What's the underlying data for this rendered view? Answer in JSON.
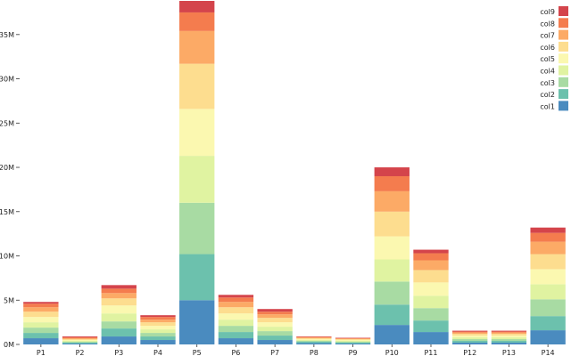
{
  "chart_data": {
    "type": "bar",
    "stacked": true,
    "categories": [
      "P1",
      "P2",
      "P3",
      "P4",
      "P5",
      "P6",
      "P7",
      "P8",
      "P9",
      "P10",
      "P11",
      "P12",
      "P13",
      "P14"
    ],
    "ylim": [
      0,
      38500000
    ],
    "yticks": [
      0,
      5000000,
      10000000,
      15000000,
      20000000,
      25000000,
      30000000,
      35000000
    ],
    "ytick_labels": [
      "0M",
      "5M",
      "10M",
      "15M",
      "20M",
      "25M",
      "30M",
      "35M"
    ],
    "legend_position": "top-right",
    "grid": false,
    "series": [
      {
        "name": "col1",
        "color": "#4a8bbf",
        "values": [
          700000,
          100000,
          900000,
          500000,
          5000000,
          700000,
          500000,
          150000,
          100000,
          2200000,
          1400000,
          200000,
          200000,
          1600000
        ]
      },
      {
        "name": "col2",
        "color": "#6cc1ad",
        "values": [
          600000,
          100000,
          900000,
          400000,
          5200000,
          700000,
          500000,
          150000,
          100000,
          2300000,
          1300000,
          200000,
          200000,
          1600000
        ]
      },
      {
        "name": "col3",
        "color": "#a8dba3",
        "values": [
          600000,
          100000,
          800000,
          400000,
          5800000,
          700000,
          500000,
          100000,
          100000,
          2600000,
          1400000,
          200000,
          200000,
          1900000
        ]
      },
      {
        "name": "col4",
        "color": "#e0f3a1",
        "values": [
          600000,
          100000,
          900000,
          400000,
          5300000,
          700000,
          500000,
          100000,
          100000,
          2500000,
          1400000,
          200000,
          200000,
          1700000
        ]
      },
      {
        "name": "col5",
        "color": "#fbf8b0",
        "values": [
          600000,
          100000,
          900000,
          400000,
          5300000,
          700000,
          500000,
          100000,
          100000,
          2600000,
          1500000,
          200000,
          200000,
          1700000
        ]
      },
      {
        "name": "col6",
        "color": "#fddd8f",
        "values": [
          600000,
          100000,
          800000,
          400000,
          5100000,
          700000,
          500000,
          100000,
          100000,
          2800000,
          1400000,
          200000,
          200000,
          1700000
        ]
      },
      {
        "name": "col7",
        "color": "#fcaa66",
        "values": [
          500000,
          100000,
          600000,
          300000,
          3700000,
          600000,
          400000,
          100000,
          50000,
          2300000,
          1100000,
          150000,
          150000,
          1400000
        ]
      },
      {
        "name": "col8",
        "color": "#f47c4e",
        "values": [
          400000,
          100000,
          500000,
          300000,
          2100000,
          500000,
          300000,
          50000,
          50000,
          1700000,
          800000,
          100000,
          100000,
          1000000
        ]
      },
      {
        "name": "col9",
        "color": "#d4444b",
        "values": [
          200000,
          100000,
          400000,
          200000,
          1300000,
          300000,
          300000,
          50000,
          50000,
          1000000,
          400000,
          100000,
          100000,
          600000
        ]
      }
    ]
  }
}
